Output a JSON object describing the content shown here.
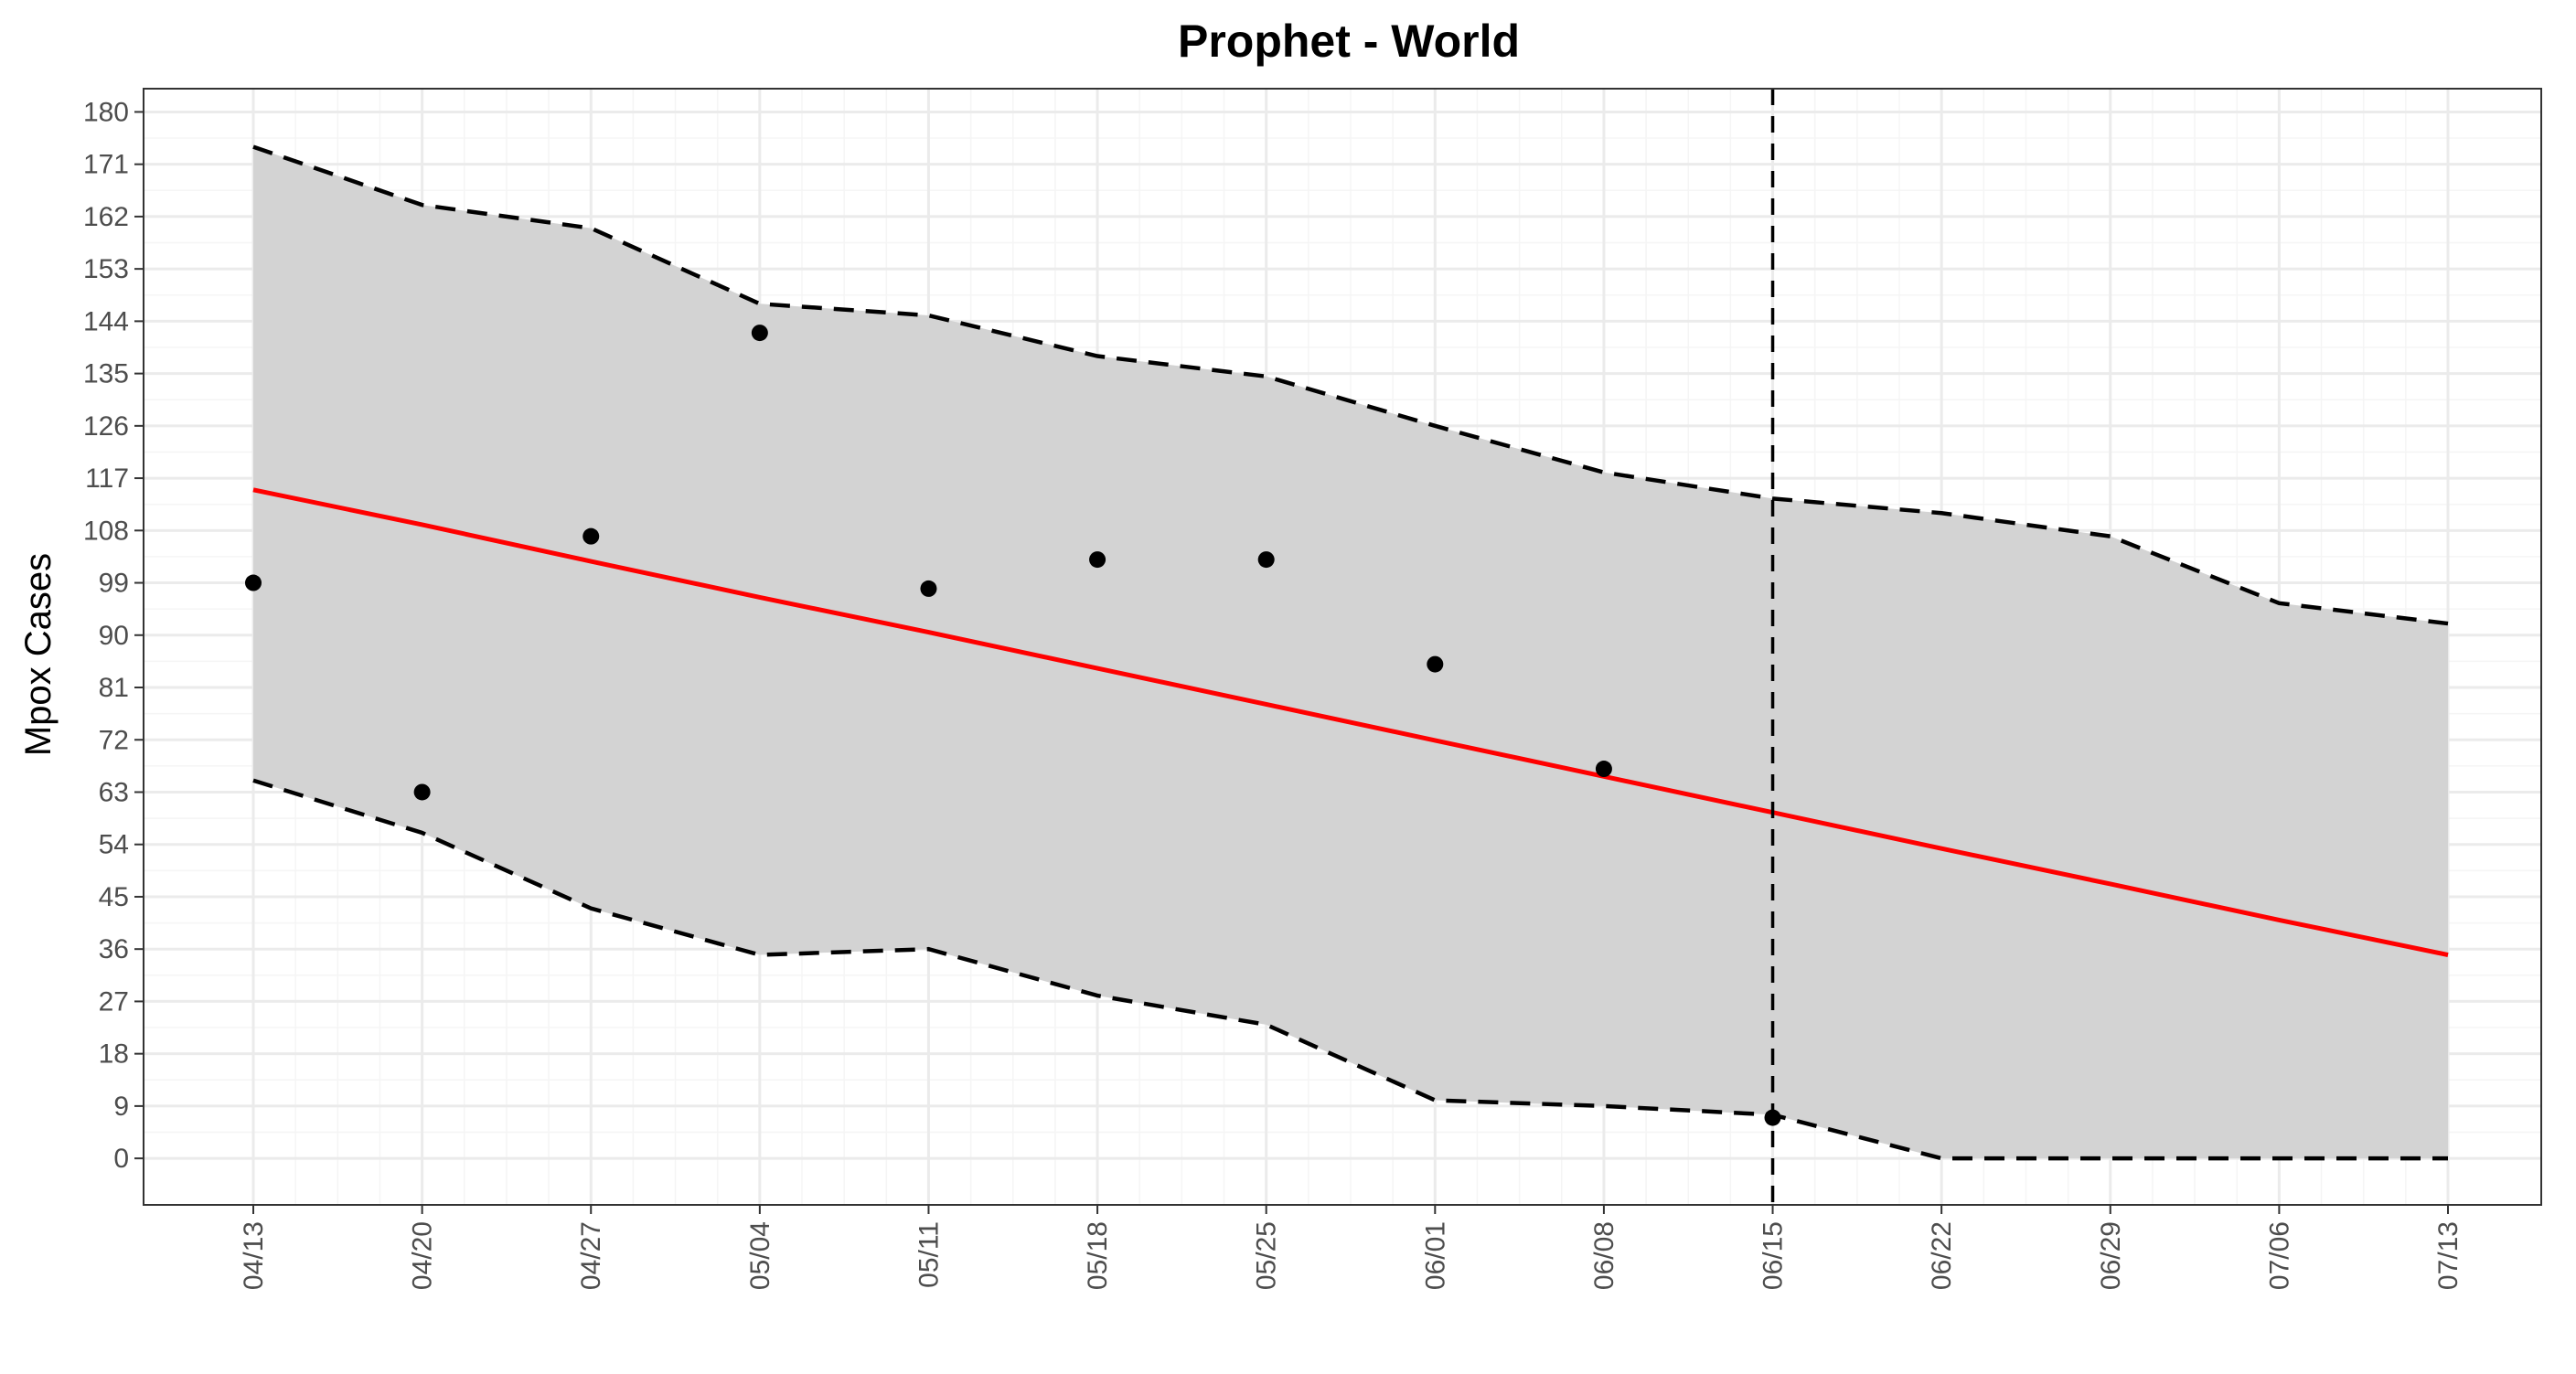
{
  "chart_data": {
    "type": "line",
    "title": "Prophet - World",
    "xlabel": "",
    "ylabel": "Mpox Cases",
    "x_tick_labels": [
      "04/13",
      "04/20",
      "04/27",
      "05/04",
      "05/11",
      "05/18",
      "05/25",
      "06/01",
      "06/08",
      "06/15",
      "06/22",
      "06/29",
      "07/06",
      "07/13"
    ],
    "y_tick_labels": [
      "0",
      "9",
      "18",
      "27",
      "36",
      "45",
      "54",
      "63",
      "72",
      "81",
      "90",
      "99",
      "108",
      "117",
      "126",
      "135",
      "144",
      "153",
      "162",
      "171",
      "180"
    ],
    "ylim": [
      -8,
      184
    ],
    "grid": true,
    "legend": "none",
    "cutoff_date": "06/15",
    "series": [
      {
        "kind": "interval",
        "upper": [
          174,
          164,
          160,
          147,
          145,
          138,
          134.5,
          126,
          118,
          113.5,
          111,
          107,
          95.5,
          92
        ],
        "lower": [
          65,
          56,
          43,
          35,
          36,
          28,
          23,
          10,
          9,
          7.5,
          0,
          0,
          0,
          0
        ]
      },
      {
        "kind": "forecast",
        "values": [
          115,
          109,
          102.7,
          96.5,
          90.5,
          84.3,
          78.1,
          71.9,
          65.7,
          59.5,
          53.3,
          47.2,
          41,
          35
        ]
      },
      {
        "kind": "observed",
        "x": [
          "04/13",
          "04/20",
          "04/27",
          "05/04",
          "05/11",
          "05/18",
          "05/25",
          "06/01",
          "06/08",
          "06/15"
        ],
        "values": [
          99,
          63,
          107,
          142,
          98,
          103,
          103,
          85,
          67,
          7
        ]
      }
    ],
    "colors": {
      "band": "#d3d3d3",
      "forecast": "#ff0000",
      "bounds": "#000000",
      "points": "#000000",
      "grid_major": "#ebebeb",
      "grid_minor": "#f5f5f5",
      "panel_border": "#333333"
    }
  }
}
